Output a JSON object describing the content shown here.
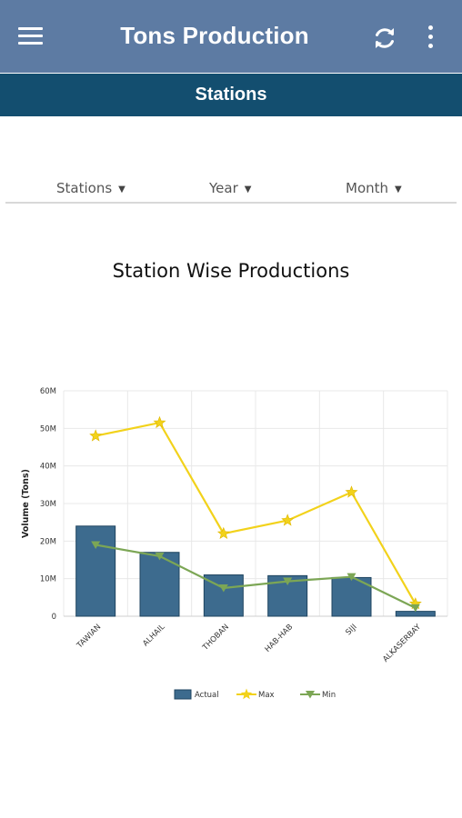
{
  "appbar": {
    "title": "Tons Production",
    "menu_icon": "hamburger-menu-icon",
    "refresh_icon": "refresh-icon",
    "more_icon": "more-vertical-icon"
  },
  "tab": {
    "label": "Stations"
  },
  "filters": {
    "stations": "Stations",
    "year": "Year",
    "month": "Month"
  },
  "chart_data": {
    "type": "bar",
    "title": "Station Wise Productions",
    "ylabel": "Volume (Tons)",
    "xlabel": "",
    "ylim": [
      0,
      60000000
    ],
    "yticks": [
      "0",
      "10M",
      "20M",
      "30M",
      "40M",
      "50M",
      "60M"
    ],
    "categories": [
      "TAWIAN",
      "ALHAIL",
      "THOBAN",
      "HAB-HAB",
      "SIJI",
      "ALKASERBAY"
    ],
    "series": [
      {
        "name": "Actual",
        "type": "bar",
        "color": "#3d6b8e",
        "values": [
          24000000,
          17000000,
          11000000,
          10800000,
          10300000,
          1300000
        ]
      },
      {
        "name": "Max",
        "type": "line",
        "marker": "star",
        "color": "#f2d21b",
        "values": [
          48000000,
          51500000,
          22000000,
          25500000,
          33000000,
          3300000
        ]
      },
      {
        "name": "Min",
        "type": "line",
        "marker": "triangle-down",
        "color": "#7ca655",
        "values": [
          19000000,
          16000000,
          7500000,
          9300000,
          10500000,
          2200000
        ]
      }
    ],
    "grid": true,
    "legend": "bottom"
  }
}
